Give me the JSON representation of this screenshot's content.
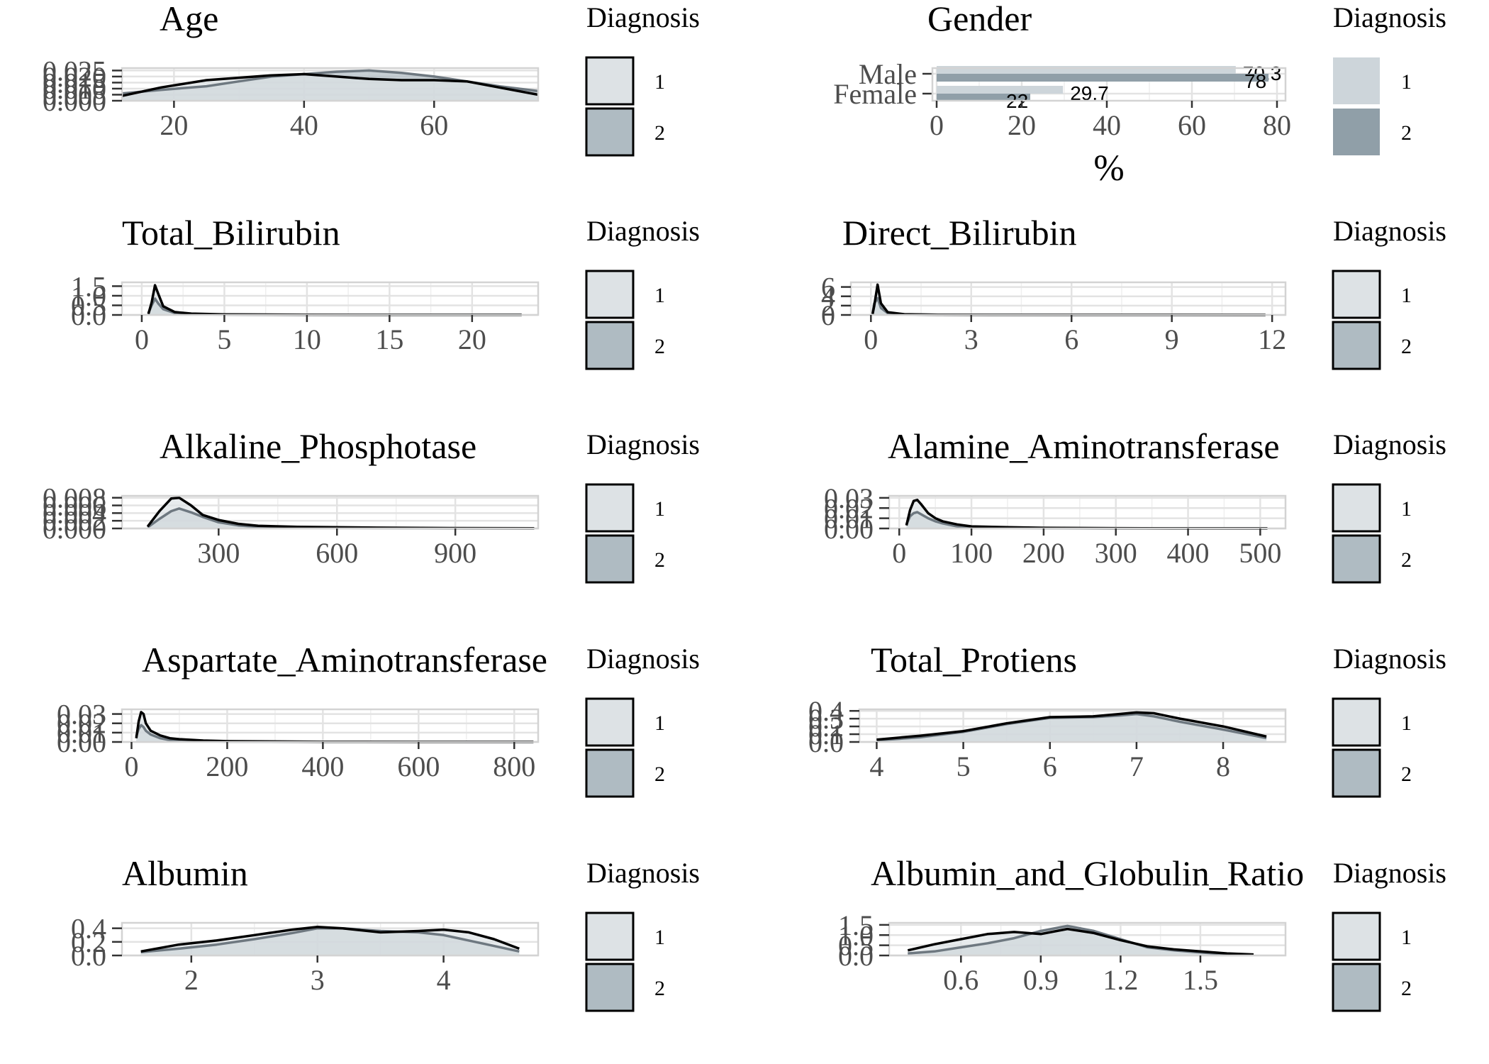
{
  "chart_data": [
    {
      "type": "area",
      "title": "Age",
      "xticks": [
        20,
        40,
        60
      ],
      "xlim": [
        12,
        76
      ],
      "yticks": [
        "0.000",
        "0.005",
        "0.010",
        "0.015",
        "0.020",
        "0.025"
      ],
      "ylim": [
        0,
        0.027
      ],
      "series": [
        {
          "name": "1",
          "x": [
            12,
            18,
            25,
            30,
            35,
            40,
            45,
            50,
            55,
            60,
            65,
            70,
            76
          ],
          "y": [
            0.004,
            0.011,
            0.017,
            0.019,
            0.021,
            0.022,
            0.02,
            0.018,
            0.017,
            0.017,
            0.016,
            0.011,
            0.005
          ]
        },
        {
          "name": "2",
          "x": [
            12,
            18,
            25,
            30,
            35,
            40,
            45,
            50,
            55,
            60,
            65,
            70,
            76
          ],
          "y": [
            0.006,
            0.009,
            0.012,
            0.016,
            0.02,
            0.022,
            0.024,
            0.025,
            0.023,
            0.02,
            0.016,
            0.012,
            0.008
          ]
        }
      ],
      "legend": {
        "title": "Diagnosis",
        "entries": [
          "1",
          "2"
        ]
      }
    },
    {
      "type": "bar",
      "orientation": "horizontal",
      "title": "Gender",
      "xlabel": "%",
      "categories": [
        "Female",
        "Male"
      ],
      "xticks": [
        0,
        20,
        40,
        60,
        80
      ],
      "xlim": [
        -1,
        82
      ],
      "series": [
        {
          "name": "1",
          "values": [
            29.7,
            70.3
          ],
          "labels": [
            "29.7",
            "70.3"
          ]
        },
        {
          "name": "2",
          "values": [
            22,
            78
          ],
          "labels": [
            "22",
            "78"
          ]
        }
      ],
      "legend": {
        "title": "Diagnosis",
        "entries": [
          "1",
          "2"
        ]
      }
    },
    {
      "type": "area",
      "title": "Total_Bilirubin",
      "xticks": [
        0,
        5,
        10,
        15,
        20
      ],
      "xlim": [
        -1.2,
        24
      ],
      "yticks": [
        "0.0",
        "0.5",
        "1.0",
        "1.5"
      ],
      "ylim": [
        0,
        1.7
      ],
      "series": [
        {
          "name": "1",
          "x": [
            0.4,
            0.6,
            0.8,
            1.0,
            1.3,
            2,
            3,
            5,
            10,
            15,
            23
          ],
          "y": [
            0.05,
            0.65,
            1.55,
            1.1,
            0.45,
            0.15,
            0.07,
            0.03,
            0.01,
            0.005,
            0.003
          ]
        },
        {
          "name": "2",
          "x": [
            0.4,
            0.6,
            0.8,
            1.0,
            1.3,
            2,
            3,
            5,
            10,
            15,
            23
          ],
          "y": [
            0.1,
            0.5,
            0.85,
            0.6,
            0.3,
            0.1,
            0.04,
            0.02,
            0.005,
            0.003,
            0.002
          ]
        }
      ],
      "legend": {
        "title": "Diagnosis",
        "entries": [
          "1",
          "2"
        ]
      }
    },
    {
      "type": "area",
      "title": "Direct_Bilirubin",
      "xticks": [
        0,
        3,
        6,
        9,
        12
      ],
      "xlim": [
        -0.6,
        12.4
      ],
      "yticks": [
        "0",
        "2",
        "4",
        "6"
      ],
      "ylim": [
        0,
        7
      ],
      "series": [
        {
          "name": "1",
          "x": [
            0.05,
            0.1,
            0.2,
            0.3,
            0.5,
            1,
            2,
            4,
            8,
            11.8
          ],
          "y": [
            0.2,
            2.0,
            6.5,
            2.5,
            0.6,
            0.15,
            0.05,
            0.02,
            0.01,
            0.005
          ]
        },
        {
          "name": "2",
          "x": [
            0.05,
            0.1,
            0.2,
            0.3,
            0.5,
            1,
            2,
            4,
            8,
            11.8
          ],
          "y": [
            0.4,
            2.5,
            3.6,
            1.5,
            0.4,
            0.1,
            0.03,
            0.01,
            0.005,
            0.003
          ]
        }
      ],
      "legend": {
        "title": "Diagnosis",
        "entries": [
          "1",
          "2"
        ]
      }
    },
    {
      "type": "area",
      "title": "Alkaline_Phosphotase",
      "xticks": [
        300,
        600,
        900
      ],
      "xlim": [
        55,
        1110
      ],
      "yticks": [
        "0.000",
        "0.002",
        "0.004",
        "0.006",
        "0.008"
      ],
      "ylim": [
        0,
        0.0085
      ],
      "series": [
        {
          "name": "1",
          "x": [
            120,
            150,
            180,
            200,
            230,
            260,
            300,
            350,
            400,
            500,
            700,
            900,
            1100
          ],
          "y": [
            0.0005,
            0.0045,
            0.0078,
            0.008,
            0.006,
            0.0035,
            0.0022,
            0.0012,
            0.0007,
            0.0004,
            0.0002,
            0.0001,
            5e-05
          ]
        },
        {
          "name": "2",
          "x": [
            120,
            150,
            180,
            200,
            230,
            260,
            300,
            350,
            400,
            500,
            700,
            900,
            1100
          ],
          "y": [
            0.0003,
            0.0025,
            0.0045,
            0.0052,
            0.0042,
            0.003,
            0.0016,
            0.0008,
            0.0004,
            0.0002,
            0.0001,
            5e-05,
            2e-05
          ]
        }
      ],
      "legend": {
        "title": "Diagnosis",
        "entries": [
          "1",
          "2"
        ]
      }
    },
    {
      "type": "area",
      "title": "Alamine_Aminotransferase",
      "xticks": [
        0,
        100,
        200,
        300,
        400,
        500
      ],
      "xlim": [
        -14,
        535
      ],
      "yticks": [
        "0.00",
        "0.01",
        "0.02",
        "0.03"
      ],
      "ylim": [
        0,
        0.032
      ],
      "series": [
        {
          "name": "1",
          "x": [
            10,
            15,
            20,
            25,
            30,
            40,
            50,
            60,
            80,
            100,
            150,
            200,
            300,
            400,
            510
          ],
          "y": [
            0.003,
            0.018,
            0.027,
            0.028,
            0.024,
            0.015,
            0.01,
            0.007,
            0.004,
            0.002,
            0.0012,
            0.0006,
            0.0003,
            0.0001,
            5e-05
          ]
        },
        {
          "name": "2",
          "x": [
            10,
            15,
            20,
            25,
            30,
            40,
            50,
            60,
            80,
            100,
            150,
            200,
            300,
            400,
            510
          ],
          "y": [
            0.004,
            0.012,
            0.015,
            0.016,
            0.014,
            0.01,
            0.007,
            0.005,
            0.002,
            0.001,
            0.0005,
            0.0003,
            0.0001,
            5e-05,
            2e-05
          ]
        }
      ],
      "legend": {
        "title": "Diagnosis",
        "entries": [
          "1",
          "2"
        ]
      }
    },
    {
      "type": "area",
      "title": "Aspartate_Aminotransferase",
      "xticks": [
        0,
        200,
        400,
        600,
        800
      ],
      "xlim": [
        -20,
        850
      ],
      "yticks": [
        "0.00",
        "0.01",
        "0.02",
        "0.03"
      ],
      "ylim": [
        0,
        0.035
      ],
      "series": [
        {
          "name": "1",
          "x": [
            10,
            15,
            20,
            25,
            30,
            40,
            60,
            80,
            100,
            150,
            200,
            400,
            600,
            840
          ],
          "y": [
            0.004,
            0.022,
            0.032,
            0.03,
            0.02,
            0.012,
            0.007,
            0.004,
            0.003,
            0.0015,
            0.0008,
            0.0002,
            0.0001,
            5e-05
          ]
        },
        {
          "name": "2",
          "x": [
            10,
            15,
            20,
            25,
            30,
            40,
            60,
            80,
            100,
            150,
            200,
            400,
            600,
            840
          ],
          "y": [
            0.006,
            0.014,
            0.018,
            0.016,
            0.012,
            0.008,
            0.004,
            0.002,
            0.0015,
            0.0008,
            0.0004,
            0.0001,
            5e-05,
            2e-05
          ]
        }
      ],
      "legend": {
        "title": "Diagnosis",
        "entries": [
          "1",
          "2"
        ]
      }
    },
    {
      "type": "area",
      "title": "Total_Protiens",
      "xticks": [
        4,
        5,
        6,
        7,
        8
      ],
      "xlim": [
        3.8,
        8.72
      ],
      "yticks": [
        "0.0",
        "0.1",
        "0.2",
        "0.3",
        "0.4"
      ],
      "ylim": [
        0,
        0.42
      ],
      "series": [
        {
          "name": "1",
          "x": [
            4.0,
            4.5,
            5.0,
            5.5,
            6.0,
            6.5,
            6.8,
            7.0,
            7.2,
            7.5,
            8.0,
            8.5
          ],
          "y": [
            0.03,
            0.08,
            0.14,
            0.24,
            0.32,
            0.33,
            0.36,
            0.38,
            0.37,
            0.3,
            0.2,
            0.07
          ]
        },
        {
          "name": "2",
          "x": [
            4.0,
            4.5,
            5.0,
            5.5,
            6.0,
            6.5,
            6.8,
            7.0,
            7.2,
            7.5,
            8.0,
            8.5
          ],
          "y": [
            0.02,
            0.06,
            0.13,
            0.23,
            0.31,
            0.32,
            0.34,
            0.36,
            0.33,
            0.26,
            0.16,
            0.05
          ]
        }
      ],
      "legend": {
        "title": "Diagnosis",
        "entries": [
          "1",
          "2"
        ]
      }
    },
    {
      "type": "area",
      "title": "Albumin",
      "xticks": [
        2,
        3,
        4
      ],
      "xlim": [
        1.45,
        4.75
      ],
      "yticks": [
        "0.0",
        "0.2",
        "0.4"
      ],
      "ylim": [
        0,
        0.48
      ],
      "series": [
        {
          "name": "1",
          "x": [
            1.6,
            1.9,
            2.2,
            2.5,
            2.8,
            3.0,
            3.2,
            3.5,
            3.8,
            4.0,
            4.2,
            4.4,
            4.6
          ],
          "y": [
            0.06,
            0.16,
            0.22,
            0.3,
            0.38,
            0.42,
            0.4,
            0.34,
            0.36,
            0.38,
            0.34,
            0.24,
            0.1
          ]
        },
        {
          "name": "2",
          "x": [
            1.6,
            1.9,
            2.2,
            2.5,
            2.8,
            3.0,
            3.2,
            3.5,
            3.8,
            4.0,
            4.2,
            4.4,
            4.6
          ],
          "y": [
            0.05,
            0.1,
            0.16,
            0.24,
            0.33,
            0.4,
            0.4,
            0.36,
            0.34,
            0.3,
            0.22,
            0.14,
            0.06
          ]
        }
      ],
      "legend": {
        "title": "Diagnosis",
        "entries": [
          "1",
          "2"
        ]
      }
    },
    {
      "type": "area",
      "title": "Albumin_and_Globulin_Ratio",
      "xticks": [
        0.6,
        0.9,
        1.2,
        1.5
      ],
      "xlim": [
        0.33,
        1.82
      ],
      "yticks": [
        "0.0",
        "0.5",
        "1.0",
        "1.5"
      ],
      "ylim": [
        0,
        1.6
      ],
      "series": [
        {
          "name": "1",
          "x": [
            0.4,
            0.5,
            0.6,
            0.7,
            0.8,
            0.9,
            1.0,
            1.1,
            1.2,
            1.3,
            1.4,
            1.5,
            1.6,
            1.7
          ],
          "y": [
            0.25,
            0.55,
            0.8,
            1.05,
            1.15,
            1.05,
            1.3,
            1.1,
            0.75,
            0.45,
            0.3,
            0.2,
            0.1,
            0.05
          ]
        },
        {
          "name": "2",
          "x": [
            0.4,
            0.5,
            0.6,
            0.7,
            0.8,
            0.9,
            1.0,
            1.1,
            1.2,
            1.3,
            1.4,
            1.5,
            1.6,
            1.7
          ],
          "y": [
            0.1,
            0.2,
            0.4,
            0.6,
            0.85,
            1.2,
            1.45,
            1.2,
            0.8,
            0.4,
            0.25,
            0.15,
            0.06,
            0.03
          ]
        }
      ],
      "legend": {
        "title": "Diagnosis",
        "entries": [
          "1",
          "2"
        ]
      }
    }
  ],
  "colors": {
    "density_fill_1": "#dde2e5",
    "density_fill_2": "#afbbc2",
    "density_line_1": "#000000",
    "density_line_2": "#6e7880",
    "bar_fill_1": "#cdd5da",
    "bar_fill_2": "#909fa8",
    "grid": "#e3e3e3",
    "panel_border": "#d3d3d3",
    "tick_text": "#4d4d4d"
  }
}
